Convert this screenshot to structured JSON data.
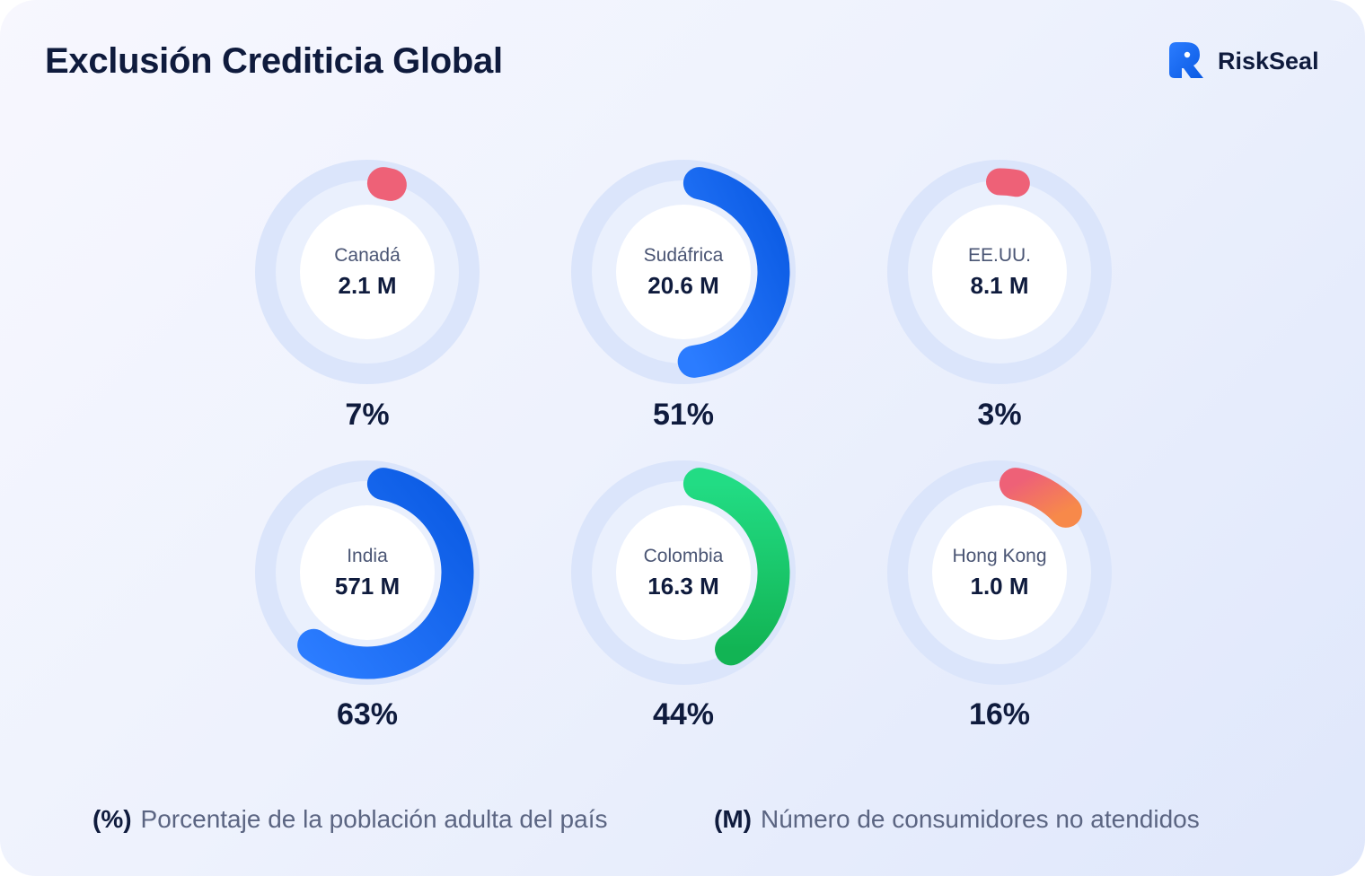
{
  "header": {
    "title": "Exclusión Crediticia Global",
    "brand": "RiskSeal",
    "logo_icon": "riskseal-logo-icon"
  },
  "colors": {
    "track": "#dbe5fb",
    "inner_halo": "#eaf0fd",
    "center": "#ffffff",
    "red": "#ee6177",
    "blue_start": "#2b7cff",
    "blue_end": "#0a5ae3",
    "green_start": "#22dc84",
    "green_end": "#12b454",
    "orange": "#f7894a"
  },
  "chart_data": {
    "type": "donut",
    "units": {
      "percent": "%",
      "value": "M"
    },
    "series": [
      {
        "country": "Canadá",
        "value_label": "2.1 M",
        "value": 2.1,
        "percent": 7,
        "percent_label": "7%",
        "color": "red"
      },
      {
        "country": "Sudáfrica",
        "value_label": "20.6 M",
        "value": 20.6,
        "percent": 51,
        "percent_label": "51%",
        "color": "blue"
      },
      {
        "country": "EE.UU.",
        "value_label": "8.1 M",
        "value": 8.1,
        "percent": 3,
        "percent_label": "3%",
        "color": "red"
      },
      {
        "country": "India",
        "value_label": "571 M",
        "value": 571,
        "percent": 63,
        "percent_label": "63%",
        "color": "blue"
      },
      {
        "country": "Colombia",
        "value_label": "16.3 M",
        "value": 16.3,
        "percent": 44,
        "percent_label": "44%",
        "color": "green"
      },
      {
        "country": "Hong Kong",
        "value_label": "1.0 M",
        "value": 1.0,
        "percent": 16,
        "percent_label": "16%",
        "color": "red-orange"
      }
    ]
  },
  "legend": [
    {
      "symbol": "(%)",
      "text": "Porcentaje de la población adulta del país"
    },
    {
      "symbol": "(M)",
      "text": "Número de consumidores no atendidos"
    }
  ]
}
